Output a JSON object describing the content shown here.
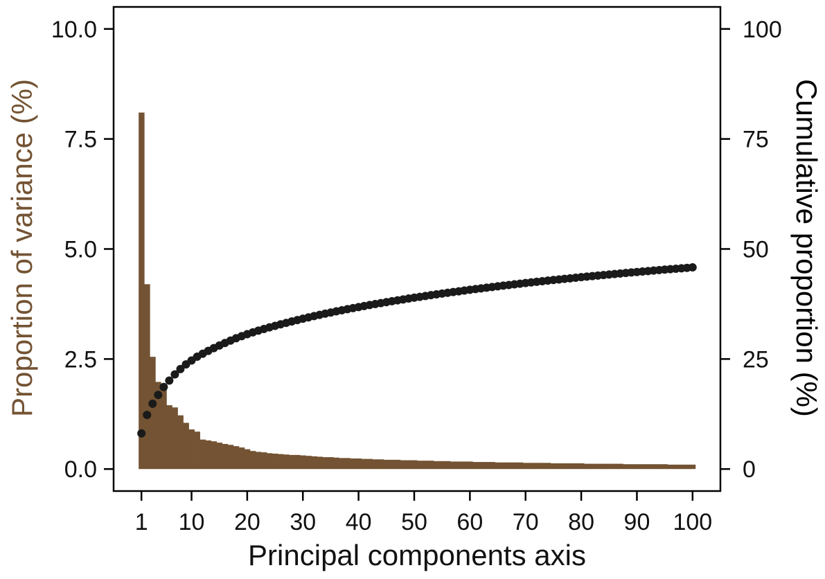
{
  "chart_data": {
    "type": "bar",
    "xlabel": "Principal components axis",
    "ylabel": "Proportion of variance (%)",
    "y2label": "Cumulative proportion (%)",
    "xlim": [
      -4,
      105
    ],
    "ylim": [
      -0.5,
      10.5
    ],
    "y2lim": [
      -5,
      105
    ],
    "x_ticks": [
      1,
      10,
      20,
      30,
      40,
      50,
      60,
      70,
      80,
      90,
      100
    ],
    "y_ticks": [
      "0.0",
      "2.5",
      "5.0",
      "7.5",
      "10.0"
    ],
    "y2_ticks": [
      "0",
      "25",
      "50",
      "75",
      "100"
    ],
    "grid": false,
    "legend": "none",
    "colors": {
      "bars": "#735333",
      "points": "#1a1a1a",
      "axis": "#000000",
      "ylabel": "#735333",
      "y2label": "#000000"
    },
    "x": [
      1,
      2,
      3,
      4,
      5,
      6,
      7,
      8,
      9,
      10,
      11,
      12,
      13,
      14,
      15,
      16,
      17,
      18,
      19,
      20,
      21,
      22,
      23,
      24,
      25,
      26,
      27,
      28,
      29,
      30,
      31,
      32,
      33,
      34,
      35,
      36,
      37,
      38,
      39,
      40,
      41,
      42,
      43,
      44,
      45,
      46,
      47,
      48,
      49,
      50,
      51,
      52,
      53,
      54,
      55,
      56,
      57,
      58,
      59,
      60,
      61,
      62,
      63,
      64,
      65,
      66,
      67,
      68,
      69,
      70,
      71,
      72,
      73,
      74,
      75,
      76,
      77,
      78,
      79,
      80,
      81,
      82,
      83,
      84,
      85,
      86,
      87,
      88,
      89,
      90,
      91,
      92,
      93,
      94,
      95,
      96,
      97,
      98,
      99,
      100
    ],
    "series": [
      {
        "type": "bar",
        "axis": "left",
        "values": [
          8.1,
          4.2,
          2.55,
          1.98,
          1.82,
          1.45,
          1.4,
          1.22,
          1.05,
          0.9,
          0.85,
          0.67,
          0.65,
          0.63,
          0.6,
          0.57,
          0.55,
          0.52,
          0.49,
          0.45,
          0.41,
          0.39,
          0.38,
          0.36,
          0.35,
          0.34,
          0.33,
          0.32,
          0.32,
          0.31,
          0.3,
          0.29,
          0.28,
          0.27,
          0.27,
          0.26,
          0.25,
          0.25,
          0.24,
          0.24,
          0.23,
          0.23,
          0.22,
          0.22,
          0.21,
          0.21,
          0.21,
          0.2,
          0.2,
          0.2,
          0.19,
          0.19,
          0.19,
          0.18,
          0.18,
          0.18,
          0.17,
          0.17,
          0.17,
          0.17,
          0.16,
          0.16,
          0.16,
          0.16,
          0.15,
          0.15,
          0.15,
          0.15,
          0.15,
          0.14,
          0.14,
          0.14,
          0.14,
          0.14,
          0.13,
          0.13,
          0.13,
          0.13,
          0.13,
          0.13,
          0.12,
          0.12,
          0.12,
          0.12,
          0.12,
          0.12,
          0.12,
          0.11,
          0.11,
          0.11,
          0.11,
          0.11,
          0.11,
          0.11,
          0.11,
          0.1,
          0.1,
          0.1,
          0.1,
          0.1
        ]
      },
      {
        "type": "scatter",
        "axis": "right",
        "values": [
          8.1,
          12.3,
          14.85,
          16.83,
          18.65,
          20.1,
          21.5,
          22.72,
          23.77,
          24.67,
          25.52,
          26.19,
          26.84,
          27.47,
          28.07,
          28.64,
          29.19,
          29.71,
          30.2,
          30.65,
          31.06,
          31.45,
          31.83,
          32.19,
          32.54,
          32.88,
          33.21,
          33.53,
          33.85,
          34.16,
          34.46,
          34.75,
          35.03,
          35.3,
          35.57,
          35.83,
          36.08,
          36.33,
          36.57,
          36.81,
          37.04,
          37.27,
          37.49,
          37.71,
          37.92,
          38.13,
          38.34,
          38.54,
          38.74,
          38.94,
          39.13,
          39.32,
          39.51,
          39.69,
          39.87,
          40.05,
          40.22,
          40.39,
          40.56,
          40.73,
          40.89,
          41.05,
          41.21,
          41.37,
          41.52,
          41.67,
          41.82,
          41.97,
          42.12,
          42.26,
          42.4,
          42.54,
          42.68,
          42.82,
          42.95,
          43.08,
          43.21,
          43.34,
          43.47,
          43.6,
          43.72,
          43.84,
          43.96,
          44.08,
          44.2,
          44.32,
          44.44,
          44.55,
          44.66,
          44.77,
          44.88,
          44.99,
          45.1,
          45.21,
          45.32,
          45.42,
          45.52,
          45.62,
          45.72,
          45.82
        ]
      }
    ]
  }
}
